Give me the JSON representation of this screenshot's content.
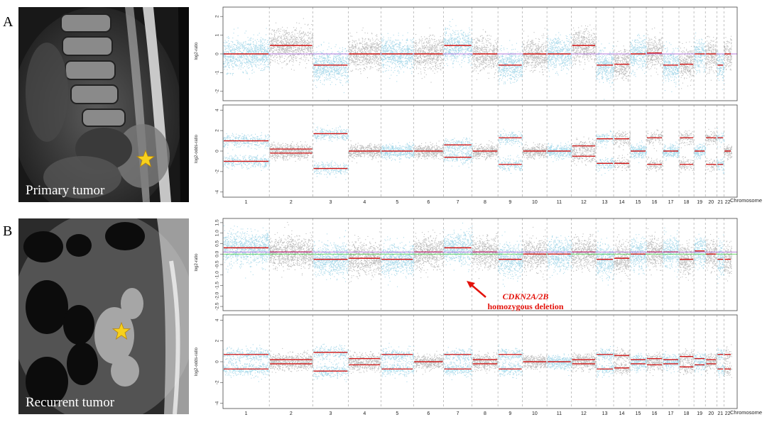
{
  "figure": {
    "panels": [
      {
        "letter": "A",
        "image_label": "Primary tumor",
        "star_icon": "star-icon",
        "top_plot": {
          "ylabel": "log2-ratio",
          "yticks": [
            "2",
            "1",
            "0",
            "-1",
            "-2"
          ]
        },
        "bottom_plot": {
          "ylabel": "log2-odds-ratio",
          "yticks": [
            "4",
            "2",
            "0",
            "-2",
            "-4"
          ]
        },
        "xlabel": "Chromosome"
      },
      {
        "letter": "B",
        "image_label": "Recurrent tumor",
        "star_icon": "star-icon",
        "top_plot": {
          "ylabel": "log2-ratio",
          "yticks": [
            "1.5",
            "1.0",
            "0.5",
            "0.0",
            "-0.5",
            "-1.0",
            "-1.5",
            "-2.0",
            "-2.5"
          ]
        },
        "bottom_plot": {
          "ylabel": "log2-odds-ratio",
          "yticks": [
            "4",
            "2",
            "0",
            "-2",
            "-4"
          ]
        },
        "xlabel": "Chromosome",
        "annotation": {
          "line1": "CDKN2A/2B",
          "line2": "homozygous deletion"
        }
      }
    ],
    "chromosomes": [
      "1",
      "2",
      "3",
      "4",
      "5",
      "6",
      "7",
      "8",
      "9",
      "10",
      "11",
      "12",
      "13",
      "14",
      "15",
      "16",
      "17",
      "18",
      "19",
      "20",
      "21",
      "22"
    ],
    "colors": {
      "blue": "#a9d9ea",
      "gray": "#bdbdbd",
      "segment": "#d21414",
      "annotation": "#e3120b",
      "baseline_purple": "#a24fd0",
      "baseline_green": "#39c439"
    }
  },
  "chart_data": [
    {
      "type": "scatter",
      "title": "A log2-ratio",
      "xlabel": "Chromosome",
      "ylabel": "log2-ratio",
      "ylim": [
        -2.5,
        2.5
      ],
      "categories": [
        "1",
        "2",
        "3",
        "4",
        "5",
        "6",
        "7",
        "8",
        "9",
        "10",
        "11",
        "12",
        "13",
        "14",
        "15",
        "16",
        "17",
        "18",
        "19",
        "20",
        "21",
        "22"
      ],
      "segments": [
        0.0,
        0.45,
        -0.6,
        0.0,
        0.0,
        0.0,
        0.45,
        0.0,
        -0.6,
        0.0,
        0.0,
        0.45,
        -0.6,
        -0.55,
        0.0,
        0.05,
        -0.6,
        -0.55,
        0.0,
        0.0,
        -0.6,
        0.0
      ]
    },
    {
      "type": "scatter",
      "title": "A log2-odds-ratio",
      "xlabel": "Chromosome",
      "ylabel": "log2-odds-ratio",
      "ylim": [
        -4.5,
        4.5
      ],
      "categories": [
        "1",
        "2",
        "3",
        "4",
        "5",
        "6",
        "7",
        "8",
        "9",
        "10",
        "11",
        "12",
        "13",
        "14",
        "15",
        "16",
        "17",
        "18",
        "19",
        "20",
        "21",
        "22"
      ],
      "split": [
        1.0,
        0.2,
        1.7,
        0.0,
        0.0,
        0.0,
        0.6,
        0.0,
        1.3,
        0.0,
        0.0,
        0.5,
        1.2,
        1.2,
        0.0,
        1.3,
        0.0,
        1.3,
        0.0,
        1.3,
        1.3,
        0.0
      ]
    },
    {
      "type": "scatter",
      "title": "B log2-ratio",
      "xlabel": "Chromosome",
      "ylabel": "log2-ratio",
      "ylim": [
        -2.7,
        1.7
      ],
      "categories": [
        "1",
        "2",
        "3",
        "4",
        "5",
        "6",
        "7",
        "8",
        "9",
        "10",
        "11",
        "12",
        "13",
        "14",
        "15",
        "16",
        "17",
        "18",
        "19",
        "20",
        "21",
        "22"
      ],
      "segments": [
        0.3,
        0.1,
        -0.25,
        -0.2,
        -0.25,
        0.1,
        0.3,
        0.1,
        -0.25,
        0.0,
        0.0,
        0.1,
        -0.25,
        -0.2,
        0.0,
        0.1,
        0.1,
        -0.25,
        0.15,
        0.0,
        -0.25,
        -0.25
      ]
    },
    {
      "type": "scatter",
      "title": "B log2-odds-ratio",
      "xlabel": "Chromosome",
      "ylabel": "log2-odds-ratio",
      "ylim": [
        -4.5,
        4.5
      ],
      "categories": [
        "1",
        "2",
        "3",
        "4",
        "5",
        "6",
        "7",
        "8",
        "9",
        "10",
        "11",
        "12",
        "13",
        "14",
        "15",
        "16",
        "17",
        "18",
        "19",
        "20",
        "21",
        "22"
      ],
      "split": [
        0.7,
        0.2,
        0.9,
        0.3,
        0.7,
        0.0,
        0.7,
        0.2,
        0.7,
        0.0,
        0.0,
        0.2,
        0.7,
        0.6,
        0.2,
        0.3,
        0.2,
        0.5,
        0.3,
        0.2,
        0.7,
        0.7
      ]
    }
  ]
}
